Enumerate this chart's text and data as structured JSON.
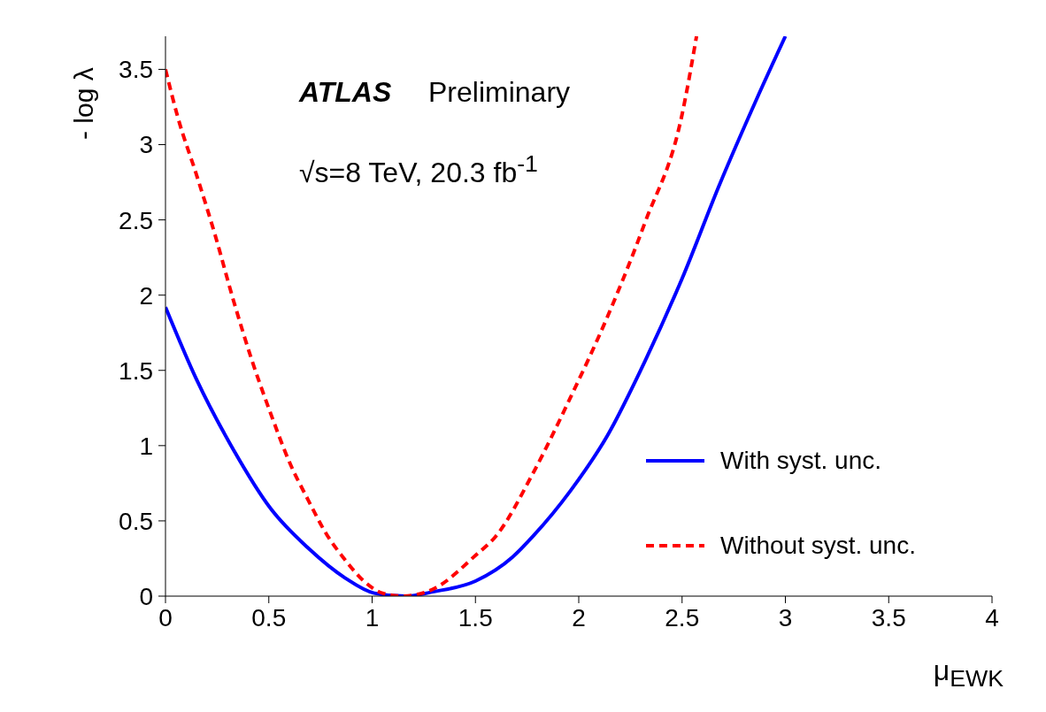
{
  "chart_data": {
    "type": "line",
    "xlabel": "μ$_{EWK}$",
    "ylabel": "- log λ",
    "annotations": [
      "ATLAS",
      "Preliminary",
      "√s=8 TeV, 20.3 fb$^{-1}$"
    ],
    "xlim": [
      0,
      4
    ],
    "xticks": [
      0,
      0.5,
      1,
      1.5,
      2,
      2.5,
      3,
      3.5,
      4
    ],
    "ylim": [
      0,
      3.72
    ],
    "yticks": [
      0,
      0.5,
      1,
      1.5,
      2,
      2.5,
      3,
      3.5
    ],
    "grid": false,
    "legend": "right",
    "marker": "none",
    "series": [
      {
        "name": "With syst. unc.",
        "color": "#0000ff",
        "line_style": "solid",
        "x": [
          0,
          0.15,
          0.33,
          0.51,
          0.69,
          0.87,
          1.01,
          1.16,
          1.3,
          1.5,
          1.68,
          1.78,
          1.96,
          2.14,
          2.32,
          2.5,
          2.68,
          2.86,
          3.0
        ],
        "values": [
          1.92,
          1.44,
          0.97,
          0.58,
          0.32,
          0.12,
          0.02,
          0,
          0.03,
          0.1,
          0.26,
          0.4,
          0.7,
          1.07,
          1.56,
          2.11,
          2.73,
          3.3,
          3.72
        ]
      },
      {
        "name": "Without syst. unc.",
        "color": "#ff0000",
        "line_style": "dashed",
        "x": [
          0,
          0.06,
          0.15,
          0.24,
          0.33,
          0.42,
          0.51,
          0.6,
          0.69,
          0.78,
          0.87,
          0.96,
          1.05,
          1.15,
          1.3,
          1.5,
          1.6,
          1.78,
          1.96,
          2.14,
          2.32,
          2.5,
          2.57
        ],
        "values": [
          3.5,
          3.18,
          2.8,
          2.4,
          1.96,
          1.56,
          1.21,
          0.89,
          0.64,
          0.41,
          0.24,
          0.1,
          0.02,
          0,
          0.05,
          0.27,
          0.4,
          0.82,
          1.32,
          1.86,
          2.48,
          3.2,
          3.72
        ]
      }
    ]
  }
}
